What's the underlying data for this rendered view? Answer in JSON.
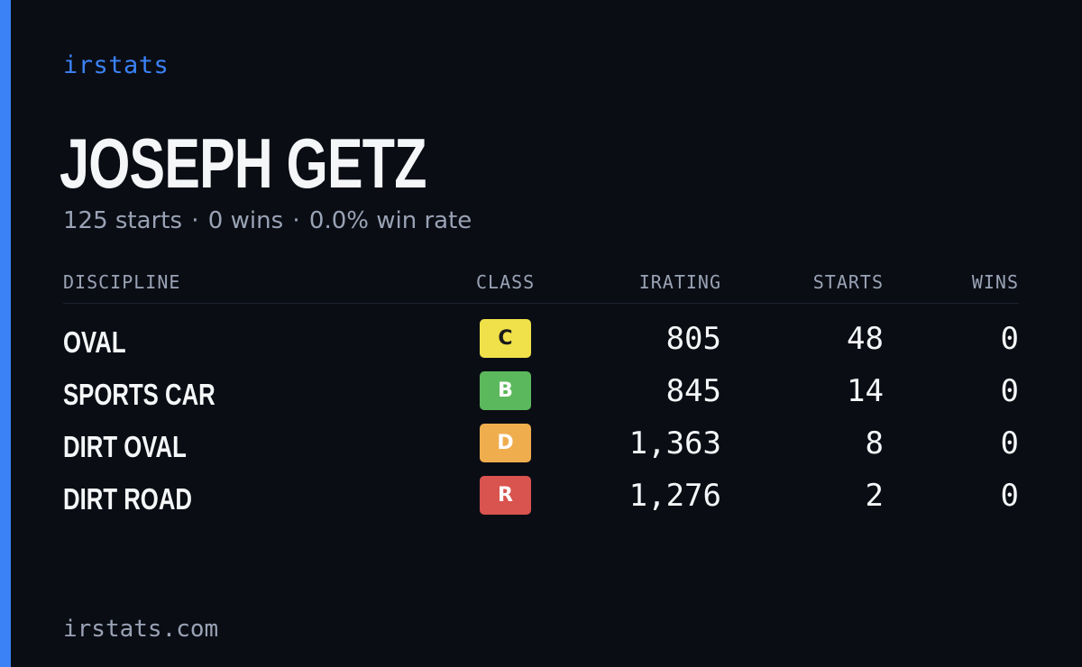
{
  "brand": "irstats",
  "player": {
    "name": "JOSEPH GETZ",
    "starts_text": "125 starts",
    "wins_text": "0 wins",
    "win_rate_text": "0.0% win rate",
    "separator": "·"
  },
  "table": {
    "headers": {
      "discipline": "DISCIPLINE",
      "class": "CLASS",
      "irating": "IRATING",
      "starts": "STARTS",
      "wins": "WINS"
    },
    "rows": [
      {
        "discipline": "OVAL",
        "class": "C",
        "class_color": "#f0e14a",
        "class_text_color": "#1a1a1a",
        "irating": "805",
        "starts": "48",
        "wins": "0"
      },
      {
        "discipline": "SPORTS CAR",
        "class": "B",
        "class_color": "#5cb85c",
        "class_text_color": "#ffffff",
        "irating": "845",
        "starts": "14",
        "wins": "0"
      },
      {
        "discipline": "DIRT OVAL",
        "class": "D",
        "class_color": "#f0ad4e",
        "class_text_color": "#ffffff",
        "irating": "1,363",
        "starts": "8",
        "wins": "0"
      },
      {
        "discipline": "DIRT ROAD",
        "class": "R",
        "class_color": "#d9534f",
        "class_text_color": "#ffffff",
        "irating": "1,276",
        "starts": "2",
        "wins": "0"
      }
    ]
  },
  "footer": {
    "url": "irstats.com"
  },
  "colors": {
    "accent": "#3b82f6",
    "background": "#0a0d14",
    "muted_text": "#9aa3b5"
  }
}
